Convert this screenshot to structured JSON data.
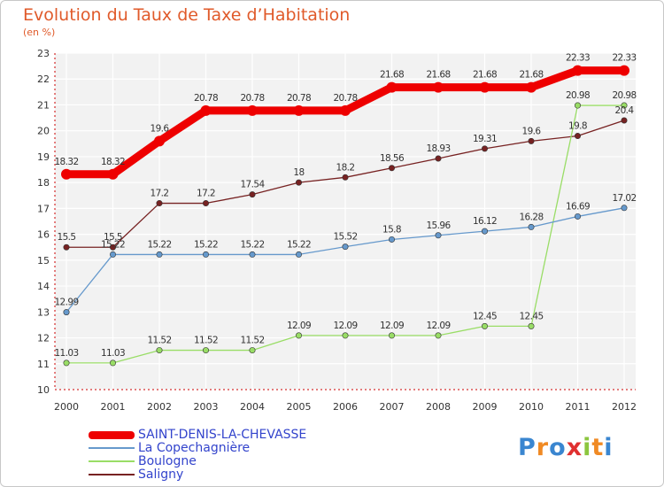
{
  "title": "Evolution du Taux de Taxe d’Habitation",
  "subtitle": "(en %)",
  "logo": {
    "letters": [
      "P",
      "r",
      "o",
      "x",
      "i",
      "t",
      "i"
    ],
    "colors": [
      "#3a86d0",
      "#f08a24",
      "#3a86d0",
      "#e03030",
      "#8cc63f",
      "#f08a24",
      "#3a86d0"
    ]
  },
  "chart_data": {
    "type": "line",
    "x": [
      "2000",
      "2001",
      "2002",
      "2003",
      "2004",
      "2005",
      "2006",
      "2007",
      "2008",
      "2009",
      "2010",
      "2011",
      "2012"
    ],
    "yticks": [
      "10",
      "11",
      "12",
      "13",
      "14",
      "15",
      "16",
      "17",
      "18",
      "19",
      "20",
      "21",
      "22",
      "23"
    ],
    "ylim": [
      10,
      23
    ],
    "grid": true,
    "series": [
      {
        "name": "SAINT-DENIS-LA-CHEVASSE",
        "color": "#ee0000",
        "width": 9,
        "values": [
          18.32,
          18.32,
          19.6,
          20.78,
          20.78,
          20.78,
          20.78,
          21.68,
          21.68,
          21.68,
          21.68,
          22.33,
          22.33
        ],
        "labels": [
          "18.32",
          "18.32",
          "19.6",
          "20.78",
          "20.78",
          "20.78",
          "20.78",
          "21.68",
          "21.68",
          "21.68",
          "21.68",
          "22.33",
          "22.33"
        ]
      },
      {
        "name": "La Copechagnière",
        "color": "#6699cc",
        "width": 1.3,
        "values": [
          12.99,
          15.22,
          15.22,
          15.22,
          15.22,
          15.22,
          15.52,
          15.8,
          15.96,
          16.12,
          16.28,
          16.69,
          17.02
        ],
        "labels": [
          "12.99",
          "15.22",
          "15.22",
          "15.22",
          "15.22",
          "15.22",
          "15.52",
          "15.8",
          "15.96",
          "16.12",
          "16.28",
          "16.69",
          "17.02"
        ]
      },
      {
        "name": "Boulogne",
        "color": "#99dd66",
        "width": 1.3,
        "values": [
          11.03,
          11.03,
          11.52,
          11.52,
          11.52,
          12.09,
          12.09,
          12.09,
          12.09,
          12.45,
          12.45,
          20.98,
          20.98
        ],
        "labels": [
          "11.03",
          "11.03",
          "11.52",
          "11.52",
          "11.52",
          "12.09",
          "12.09",
          "12.09",
          "12.09",
          "12.45",
          "12.45",
          "20.98",
          "20.98"
        ]
      },
      {
        "name": "Saligny",
        "color": "#772222",
        "width": 1.3,
        "values": [
          15.5,
          15.5,
          17.2,
          17.2,
          17.54,
          18,
          18.2,
          18.56,
          18.93,
          19.31,
          19.6,
          19.8,
          20.4
        ],
        "labels": [
          "15.5",
          "15.5",
          "17.2",
          "17.2",
          "17.54",
          "18",
          "18.2",
          "18.56",
          "18.93",
          "19.31",
          "19.6",
          "19.8",
          "20.4"
        ]
      }
    ]
  }
}
